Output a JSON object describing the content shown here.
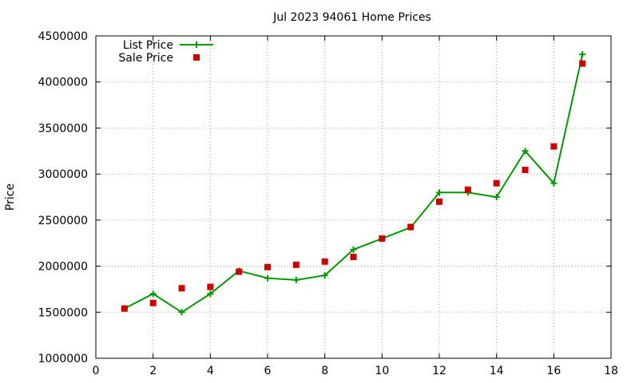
{
  "chart_data": {
    "type": "line",
    "title": "Jul 2023 94061 Home Prices",
    "xlabel": "",
    "ylabel": "Price",
    "xlim": [
      0,
      18
    ],
    "ylim": [
      1000000,
      4500000
    ],
    "xticks": [
      0,
      2,
      4,
      6,
      8,
      10,
      12,
      14,
      16,
      18
    ],
    "yticks": [
      1000000,
      1500000,
      2000000,
      2500000,
      3000000,
      3500000,
      4000000,
      4500000
    ],
    "grid": true,
    "legend_position": "top-left",
    "series": [
      {
        "name": "List Price",
        "style": "line-with-plus-markers",
        "color": "#009900",
        "x": [
          1,
          2,
          3,
          4,
          5,
          6,
          7,
          8,
          9,
          10,
          11,
          12,
          13,
          14,
          15,
          16,
          17
        ],
        "values": [
          1540000,
          1700000,
          1500000,
          1700000,
          1950000,
          1870000,
          1850000,
          1900000,
          2180000,
          2300000,
          2420000,
          2800000,
          2800000,
          2750000,
          3250000,
          2900000,
          4300000
        ]
      },
      {
        "name": "Sale Price",
        "style": "square-markers",
        "color": "#cc0000",
        "x": [
          1,
          2,
          3,
          4,
          5,
          6,
          7,
          8,
          9,
          10,
          11,
          12,
          13,
          14,
          15,
          16,
          17
        ],
        "values": [
          1540000,
          1600000,
          1760000,
          1775000,
          1940000,
          1990000,
          2015000,
          2050000,
          2100000,
          2300000,
          2425000,
          2700000,
          2830000,
          2900000,
          3045000,
          3300000,
          4200000
        ]
      }
    ]
  }
}
